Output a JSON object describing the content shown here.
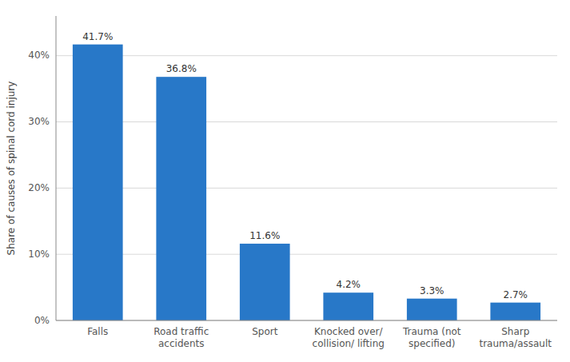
{
  "chart_data": {
    "type": "bar",
    "ylabel": "Share of causes of spinal cord injury",
    "categories": [
      "Falls",
      "Road traffic\naccidents",
      "Sport",
      "Knocked over/\ncollision/ lifting",
      "Trauma (not\nspecified)",
      "Sharp\ntrauma/assault"
    ],
    "values": [
      41.7,
      36.8,
      11.6,
      4.2,
      3.3,
      2.7
    ],
    "value_labels": [
      "41.7%",
      "36.8%",
      "11.6%",
      "4.2%",
      "3.3%",
      "2.7%"
    ],
    "color": "#2878c8",
    "ylim": [
      0,
      46
    ],
    "yticks": [
      {
        "value": 0,
        "label": "0%"
      },
      {
        "value": 10,
        "label": "10%"
      },
      {
        "value": 20,
        "label": "20%"
      },
      {
        "value": 30,
        "label": "30%"
      },
      {
        "value": 40,
        "label": "40%"
      }
    ],
    "grid": true,
    "data_labels": true
  }
}
